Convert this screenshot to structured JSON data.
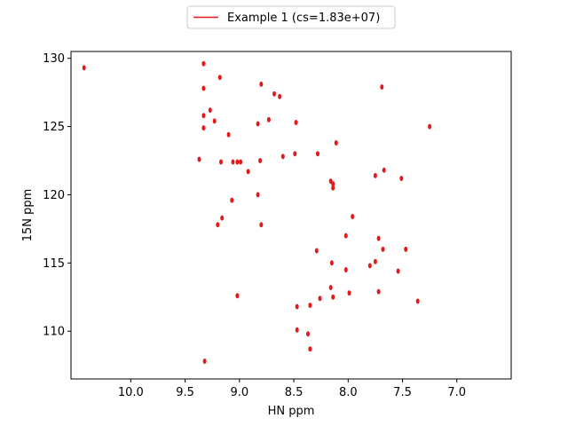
{
  "chart_data": {
    "type": "scatter",
    "title": "",
    "xlabel": "HN ppm",
    "ylabel": "15N ppm",
    "xlim": [
      10.55,
      6.5
    ],
    "ylim": [
      130.5,
      106.5
    ],
    "x_ticks": [
      10.0,
      9.5,
      9.0,
      8.5,
      8.0,
      7.5,
      7.0
    ],
    "x_tick_labels": [
      "10.0",
      "9.5",
      "9.0",
      "8.5",
      "8.0",
      "7.5",
      "7.0"
    ],
    "y_ticks": [
      110,
      115,
      120,
      125,
      130
    ],
    "y_tick_labels": [
      "110",
      "115",
      "120",
      "125",
      "130"
    ],
    "x_inverted": true,
    "y_inverted": true,
    "grid": false,
    "legend_position": "top-center",
    "series": [
      {
        "name": "Example 1 (cs=1.83e+07)",
        "color": "#e31a1c",
        "points": [
          [
            9.32,
            107.8
          ],
          [
            8.35,
            108.7
          ],
          [
            8.47,
            110.1
          ],
          [
            8.37,
            109.8
          ],
          [
            8.47,
            111.8
          ],
          [
            8.35,
            111.9
          ],
          [
            8.26,
            112.4
          ],
          [
            8.14,
            112.5
          ],
          [
            9.02,
            112.6
          ],
          [
            7.99,
            112.8
          ],
          [
            7.72,
            112.9
          ],
          [
            7.36,
            112.2
          ],
          [
            8.16,
            113.2
          ],
          [
            7.54,
            114.4
          ],
          [
            7.8,
            114.8
          ],
          [
            8.02,
            114.5
          ],
          [
            8.15,
            115.0
          ],
          [
            7.75,
            115.1
          ],
          [
            7.47,
            116.0
          ],
          [
            7.68,
            116.0
          ],
          [
            8.29,
            115.9
          ],
          [
            7.72,
            116.8
          ],
          [
            8.02,
            117.0
          ],
          [
            9.2,
            117.8
          ],
          [
            8.8,
            117.8
          ],
          [
            9.16,
            118.3
          ],
          [
            7.96,
            118.4
          ],
          [
            9.07,
            119.6
          ],
          [
            8.83,
            120.0
          ],
          [
            8.14,
            120.5
          ],
          [
            8.14,
            120.8
          ],
          [
            8.16,
            121.0
          ],
          [
            7.75,
            121.4
          ],
          [
            7.51,
            121.2
          ],
          [
            7.67,
            121.8
          ],
          [
            8.92,
            121.7
          ],
          [
            9.37,
            122.6
          ],
          [
            9.17,
            122.4
          ],
          [
            9.06,
            122.4
          ],
          [
            9.02,
            122.4
          ],
          [
            8.99,
            122.4
          ],
          [
            8.81,
            122.5
          ],
          [
            8.6,
            122.8
          ],
          [
            8.49,
            123.0
          ],
          [
            8.28,
            123.0
          ],
          [
            8.11,
            123.8
          ],
          [
            9.1,
            124.4
          ],
          [
            9.33,
            124.9
          ],
          [
            8.83,
            125.2
          ],
          [
            8.48,
            125.3
          ],
          [
            7.25,
            125.0
          ],
          [
            9.33,
            125.8
          ],
          [
            9.23,
            125.4
          ],
          [
            8.73,
            125.5
          ],
          [
            9.27,
            126.2
          ],
          [
            8.68,
            127.4
          ],
          [
            8.63,
            127.2
          ],
          [
            9.33,
            127.8
          ],
          [
            8.8,
            128.1
          ],
          [
            7.69,
            127.9
          ],
          [
            9.18,
            128.6
          ],
          [
            10.43,
            129.3
          ],
          [
            9.33,
            129.6
          ]
        ]
      }
    ]
  }
}
